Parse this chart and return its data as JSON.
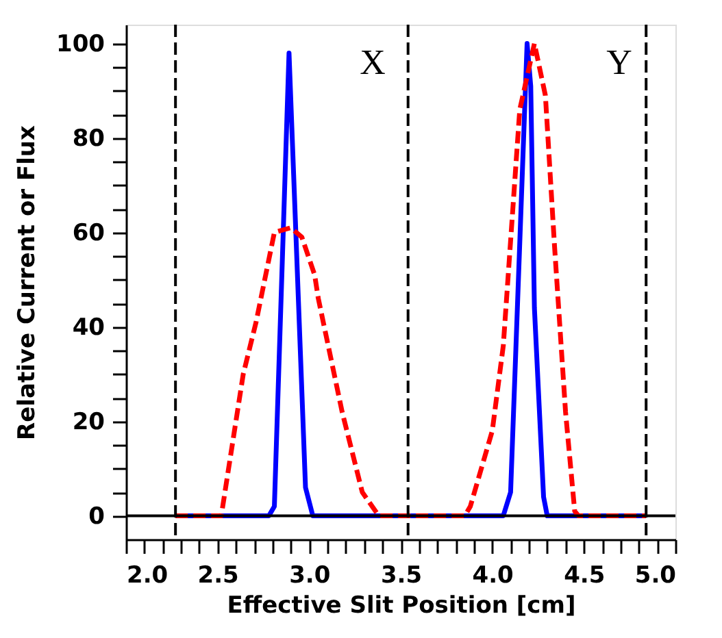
{
  "chart_data": {
    "type": "line",
    "xlabel": "Effective Slit Position [cm]",
    "ylabel": "Relative Current or Flux",
    "xlim": [
      2.0,
      5.0
    ],
    "ylim": [
      -5,
      104
    ],
    "xticks": [
      {
        "value": 2.0,
        "label": "2.0"
      },
      {
        "value": 2.1,
        "label": null
      },
      {
        "value": 2.2,
        "label": null
      },
      {
        "value": 2.3,
        "label": null
      },
      {
        "value": 2.4,
        "label": null
      },
      {
        "value": 2.5,
        "label": "2.5"
      },
      {
        "value": 2.6,
        "label": null
      },
      {
        "value": 2.7,
        "label": null
      },
      {
        "value": 2.8,
        "label": null
      },
      {
        "value": 2.9,
        "label": null
      },
      {
        "value": 3.0,
        "label": "3.0"
      },
      {
        "value": 3.1,
        "label": null
      },
      {
        "value": 3.2,
        "label": null
      },
      {
        "value": 3.3,
        "label": null
      },
      {
        "value": 3.4,
        "label": null
      },
      {
        "value": 3.5,
        "label": "3.5"
      },
      {
        "value": 3.6,
        "label": null
      },
      {
        "value": 3.7,
        "label": null
      },
      {
        "value": 3.8,
        "label": null
      },
      {
        "value": 3.9,
        "label": null
      },
      {
        "value": 4.0,
        "label": "4.0"
      },
      {
        "value": 4.1,
        "label": null
      },
      {
        "value": 4.2,
        "label": null
      },
      {
        "value": 4.3,
        "label": null
      },
      {
        "value": 4.4,
        "label": null
      },
      {
        "value": 4.5,
        "label": "4.5"
      },
      {
        "value": 4.6,
        "label": null
      },
      {
        "value": 4.7,
        "label": null
      },
      {
        "value": 4.8,
        "label": null
      },
      {
        "value": 4.9,
        "label": null
      },
      {
        "value": 5.0,
        "label": "5.0"
      }
    ],
    "yticks": [
      0,
      {
        "value": 5,
        "label": null
      },
      {
        "value": 10,
        "label": null
      },
      {
        "value": 15,
        "label": null
      },
      20,
      {
        "value": 25,
        "label": null
      },
      {
        "value": 30,
        "label": null
      },
      {
        "value": 35,
        "label": null
      },
      40,
      {
        "value": 45,
        "label": null
      },
      {
        "value": 50,
        "label": null
      },
      {
        "value": 55,
        "label": null
      },
      60,
      {
        "value": 65,
        "label": null
      },
      {
        "value": 70,
        "label": null
      },
      {
        "value": 75,
        "label": null
      },
      80,
      {
        "value": 85,
        "label": null
      },
      {
        "value": 90,
        "label": null
      },
      {
        "value": 95,
        "label": null
      },
      100
    ],
    "grid": false,
    "marker": "none",
    "series": [
      {
        "color": "#0000ff",
        "line_style": "solid",
        "x": [
          2.27,
          2.78,
          2.81,
          2.89,
          2.98,
          3.02,
          4.06,
          4.1,
          4.19,
          4.21,
          4.23,
          4.28,
          4.3,
          4.84
        ],
        "values": [
          0,
          0,
          2,
          98,
          6,
          0,
          0,
          5,
          100,
          91,
          44,
          4,
          0,
          0
        ]
      },
      {
        "color": "#ff0000",
        "line_style": "dashed",
        "x": [
          2.27,
          2.52,
          2.64,
          2.71,
          2.81,
          2.9,
          2.96,
          3.03,
          3.05,
          3.18,
          3.29,
          3.38,
          3.85,
          3.88,
          4.0,
          4.06,
          4.15,
          4.23,
          4.29,
          4.34,
          4.4,
          4.45,
          4.47,
          4.84
        ],
        "values": [
          0,
          0,
          30,
          41,
          60,
          61,
          59,
          51,
          46,
          22,
          5,
          0,
          0,
          2,
          18,
          36,
          86,
          100,
          89,
          57,
          22,
          1,
          0,
          0
        ]
      }
    ],
    "ref_lines": [
      {
        "axis": "y",
        "value": 0,
        "color": "#000000",
        "line_style": "solid"
      },
      {
        "axis": "x",
        "value": 2.27,
        "color": "#000000",
        "line_style": "dashed"
      },
      {
        "axis": "x",
        "value": 3.54,
        "color": "#000000",
        "line_style": "dashed"
      },
      {
        "axis": "x",
        "value": 4.84,
        "color": "#000000",
        "line_style": "dashed"
      }
    ],
    "annotations": [
      "X",
      "Y"
    ]
  }
}
